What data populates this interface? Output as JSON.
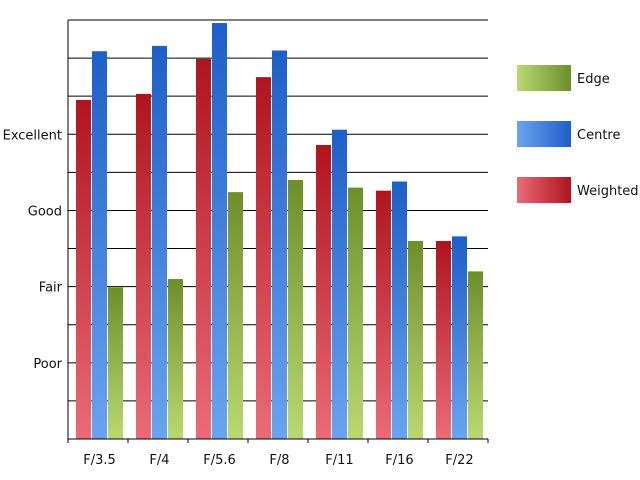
{
  "chart_data": {
    "type": "bar",
    "categories": [
      "F/3.5",
      "F/4",
      "F/5.6",
      "F/8",
      "F/11",
      "F/16",
      "F/22"
    ],
    "series": [
      {
        "name": "Weighted",
        "color": "#c0202a",
        "values": [
          4.45,
          4.53,
          4.99,
          4.75,
          3.86,
          3.26,
          2.6
        ]
      },
      {
        "name": "Centre",
        "color": "#2f6fd0",
        "values": [
          5.09,
          5.16,
          5.46,
          5.1,
          4.06,
          3.38,
          2.66
        ]
      },
      {
        "name": "Edge",
        "color": "#7fa83a",
        "values": [
          1.99,
          2.1,
          3.24,
          3.4,
          3.3,
          2.6,
          2.2
        ]
      }
    ],
    "y_tick_labels": [
      {
        "value": 1,
        "label": "Poor"
      },
      {
        "value": 2,
        "label": "Fair"
      },
      {
        "value": 3,
        "label": "Good"
      },
      {
        "value": 4,
        "label": "Excellent"
      }
    ],
    "ylim": [
      0,
      5.5
    ],
    "grid_step": 0.5,
    "grid": true,
    "legend_position": "right",
    "legend_order": [
      "Edge",
      "Centre",
      "Weighted"
    ]
  }
}
